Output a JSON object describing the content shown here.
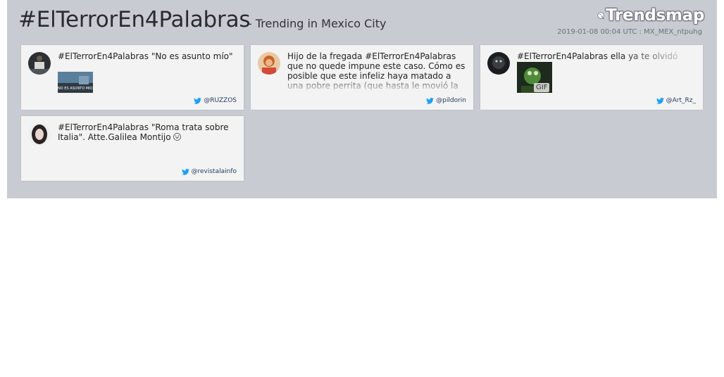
{
  "header": {
    "title": "#ElTerrorEn4Palabras",
    "subtitle": "- Trending in Mexico City",
    "logo_text": "Trendsmap",
    "meta": "2019-01-08 00:04 UTC : MX_MEX_ntpuhg"
  },
  "tweets": [
    {
      "text": "#ElTerrorEn4Palabras \"No es asunto mío\"",
      "handle": "@RUZZOS",
      "media": "image",
      "media_caption": "NO ES ASUNTO MÍO"
    },
    {
      "text": "Hijo de la fregada #ElTerrorEn4Palabras que no quede impune este caso. Cómo es posible que este infeliz haya matado a una pobre perrita (que hasta le movió la",
      "handle": "@pildorin"
    },
    {
      "text": "#ElTerrorEn4Palabras ella ya te olvidó",
      "handle": "@Art_Rz_",
      "media": "gif",
      "media_badge": "GIF"
    },
    {
      "text": "#ElTerrorEn4Palabras \"Roma trata sobre Italia\". Atte.Galilea Montijo",
      "handle": "@revistalainfo",
      "emoji": "grinning-squinting-face-icon"
    }
  ],
  "colors": {
    "panel": "#c9cbd2",
    "card": "#f3f3f3",
    "twitter_blue": "#1da1f2"
  }
}
